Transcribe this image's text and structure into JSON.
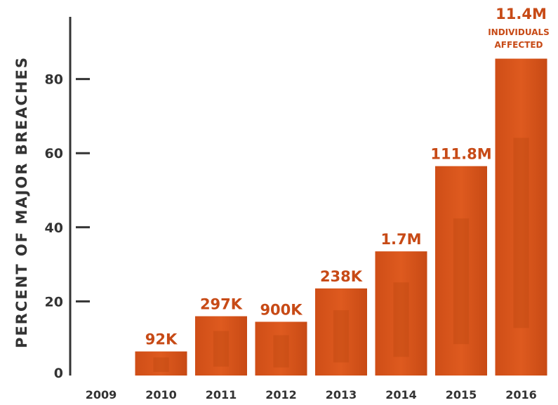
{
  "colors": {
    "bar": "#d9541b",
    "bar_dark": "#b8460f",
    "label": "#c74a16",
    "axis": "#333333"
  },
  "chart_data": {
    "type": "bar",
    "ylabel": "PERCENT OF MAJOR BREACHES",
    "xlabel": "",
    "ylim": [
      0,
      100
    ],
    "yticks": [
      0,
      20,
      40,
      60,
      80
    ],
    "categories": [
      "2009",
      "2010",
      "2011",
      "2012",
      "2013",
      "2014",
      "2015",
      "2016"
    ],
    "values": [
      0,
      6.5,
      16,
      14.5,
      23.5,
      33.5,
      56.5,
      85.5
    ],
    "data_labels": [
      "",
      "92K",
      "297K",
      "900K",
      "238K",
      "1.7M",
      "111.8M",
      "11.4M"
    ],
    "annotation": [
      "INDIVIDUALS",
      "AFFECTED"
    ],
    "grid": false,
    "legend": "none"
  }
}
